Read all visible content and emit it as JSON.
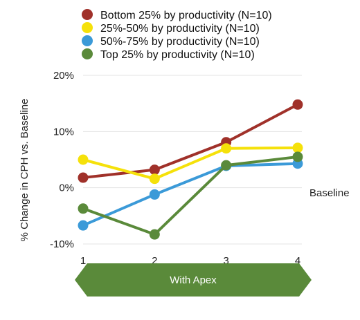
{
  "chart_data": {
    "type": "line",
    "x": [
      1,
      2,
      3,
      4
    ],
    "xticks": [
      "1",
      "2",
      "3",
      "4"
    ],
    "ylabel": "% Change in CPH vs. Baseline",
    "ylim": [
      -10,
      20
    ],
    "yticks": [
      "-10%",
      "0%",
      "10%",
      "20%"
    ],
    "yticks_values": [
      -10,
      0,
      10,
      20
    ],
    "baseline_label": "Baseline",
    "baseline_value": 0,
    "grid": true,
    "legend_position": "top",
    "series": [
      {
        "name": "Bottom 25% by productivity (N=10)",
        "color": "#a0312a",
        "values": [
          1.8,
          3.2,
          8.1,
          14.8
        ]
      },
      {
        "name": "25%-50%  by productivity (N=10)",
        "color": "#f5e10a",
        "values": [
          5.0,
          1.6,
          7.0,
          7.1
        ]
      },
      {
        "name": "50%-75% by productivity (N=10)",
        "color": "#3b9ad8",
        "values": [
          -6.7,
          -1.2,
          3.9,
          4.3
        ]
      },
      {
        "name": "Top 25% by productivity (N=10)",
        "color": "#5a8a3a",
        "values": [
          -3.7,
          -8.3,
          4.0,
          5.5
        ]
      }
    ],
    "annotation": {
      "text": "With Apex",
      "color": "#5a8a3a"
    }
  }
}
